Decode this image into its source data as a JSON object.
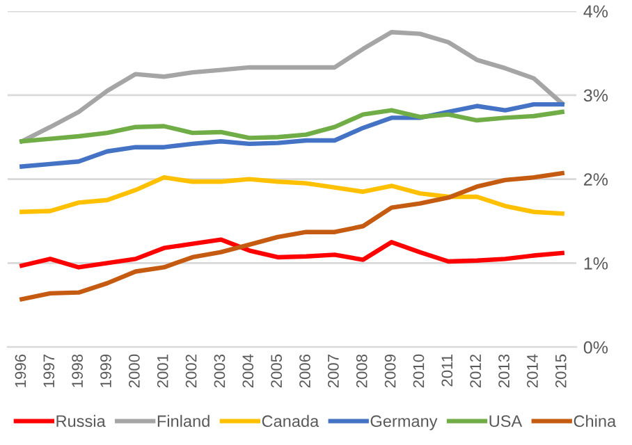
{
  "chart_data": {
    "type": "line",
    "categories": [
      "1996",
      "1997",
      "1998",
      "1999",
      "2000",
      "2001",
      "2002",
      "2003",
      "2004",
      "2005",
      "2006",
      "2007",
      "2008",
      "2009",
      "2010",
      "2011",
      "2012",
      "2013",
      "2014",
      "2015"
    ],
    "series": [
      {
        "name": "Russia",
        "color": "#ff0000",
        "values": [
          0.97,
          1.05,
          0.95,
          1.0,
          1.05,
          1.18,
          1.23,
          1.28,
          1.15,
          1.07,
          1.08,
          1.1,
          1.04,
          1.25,
          1.13,
          1.02,
          1.03,
          1.05,
          1.09,
          1.12
        ]
      },
      {
        "name": "Finland",
        "color": "#a5a5a5",
        "values": [
          2.45,
          2.62,
          2.8,
          3.05,
          3.25,
          3.22,
          3.27,
          3.3,
          3.33,
          3.33,
          3.33,
          3.33,
          3.55,
          3.75,
          3.73,
          3.63,
          3.42,
          3.32,
          3.2,
          2.9
        ]
      },
      {
        "name": "Canada",
        "color": "#ffc000",
        "values": [
          1.61,
          1.62,
          1.72,
          1.75,
          1.87,
          2.02,
          1.97,
          1.97,
          2.0,
          1.97,
          1.95,
          1.9,
          1.85,
          1.92,
          1.83,
          1.79,
          1.79,
          1.68,
          1.61,
          1.59
        ]
      },
      {
        "name": "Germany",
        "color": "#4472c4",
        "values": [
          2.15,
          2.18,
          2.21,
          2.33,
          2.38,
          2.38,
          2.42,
          2.45,
          2.42,
          2.43,
          2.46,
          2.46,
          2.61,
          2.73,
          2.73,
          2.8,
          2.87,
          2.82,
          2.89,
          2.89
        ]
      },
      {
        "name": "USA",
        "color": "#70ad47",
        "values": [
          2.45,
          2.48,
          2.51,
          2.55,
          2.62,
          2.63,
          2.55,
          2.56,
          2.49,
          2.5,
          2.53,
          2.62,
          2.77,
          2.82,
          2.74,
          2.77,
          2.7,
          2.73,
          2.75,
          2.8
        ]
      },
      {
        "name": "China",
        "color": "#c55a11",
        "values": [
          0.57,
          0.64,
          0.65,
          0.76,
          0.9,
          0.95,
          1.07,
          1.13,
          1.22,
          1.31,
          1.37,
          1.37,
          1.44,
          1.66,
          1.71,
          1.78,
          1.91,
          1.99,
          2.02,
          2.07
        ]
      }
    ],
    "ylim": [
      0,
      4
    ],
    "yticks": [
      {
        "value": 0,
        "label": "0%"
      },
      {
        "value": 1,
        "label": "1%"
      },
      {
        "value": 2,
        "label": "2%"
      },
      {
        "value": 3,
        "label": "3%"
      },
      {
        "value": 4,
        "label": "4%"
      }
    ],
    "grid": "y",
    "legend": "bottom",
    "marker": "none",
    "line_style": "solid"
  }
}
